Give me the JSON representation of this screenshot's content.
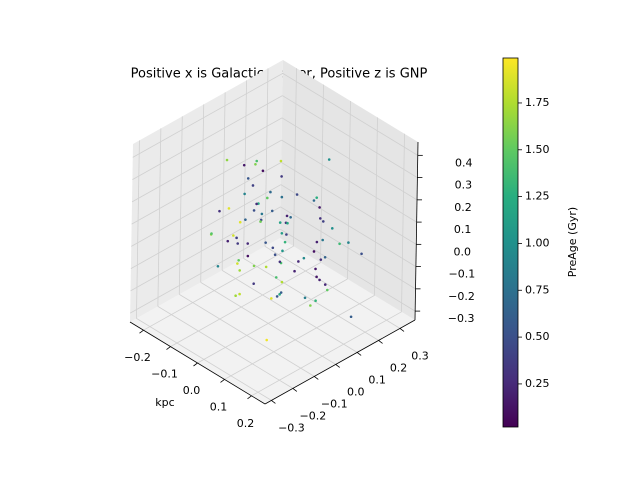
{
  "chart_data": {
    "type": "scatter3d",
    "title": "Positive x is Galactic Center, Positive z is GNP",
    "x_label": "kpc",
    "colorbar_label": "PreAge (Gyr)",
    "cmap": "viridis",
    "grid": true,
    "xlim": [
      -0.25,
      0.25
    ],
    "ylim": [
      -0.33,
      0.37
    ],
    "zlim": [
      -0.34,
      0.46
    ],
    "clim": [
      0.02,
      1.99
    ],
    "xticks": [
      {
        "value": -0.2,
        "label": "−0.2"
      },
      {
        "value": -0.1,
        "label": "−0.1"
      },
      {
        "value": 0,
        "label": "0.0"
      },
      0.1,
      0.2
    ],
    "yticks": [
      {
        "value": -0.3,
        "label": "−0.3"
      },
      {
        "value": -0.2,
        "label": "−0.2"
      },
      {
        "value": -0.1,
        "label": "−0.1"
      },
      {
        "value": 0,
        "label": "0.0"
      },
      0.1,
      0.2,
      0.3
    ],
    "zticks": [
      {
        "value": -0.3,
        "label": "−0.3"
      },
      {
        "value": -0.2,
        "label": "−0.2"
      },
      {
        "value": -0.1,
        "label": "−0.1"
      },
      {
        "value": 0,
        "label": "0.0"
      },
      0.1,
      0.2,
      0.3,
      0.4
    ],
    "cticks": [
      0.25,
      {
        "value": 0.5,
        "label": "0.50"
      },
      0.75,
      {
        "value": 1,
        "label": "1.00"
      },
      1.25,
      {
        "value": 1.5,
        "label": "1.50"
      },
      1.75
    ],
    "x": [
      0.02,
      -0.05,
      0.08,
      -0.11,
      0.01,
      0.04,
      -0.02,
      0.12,
      -0.07,
      0.03,
      -0.01,
      0.06,
      -0.09,
      0.15,
      -0.03,
      0.0,
      0.09,
      -0.13,
      0.05,
      -0.04,
      0.11,
      -0.06,
      0.02,
      -0.18,
      0.07,
      -0.02,
      0.14,
      -0.08,
      0.01,
      0.19,
      -0.15,
      0.04,
      -0.01,
      0.08,
      -0.05,
      0.1,
      -0.12,
      0.03,
      0.17,
      -0.2,
      0.06,
      -0.03,
      0.13,
      -0.09,
      0.0,
      0.05,
      -0.14,
      0.09,
      -0.04,
      0.21,
      0.02,
      -0.07,
      0.11,
      -0.02,
      0.07,
      -0.16,
      0.04,
      -0.1,
      0.15,
      -0.01,
      0.08,
      -0.05,
      0.03,
      -0.12,
      0.1,
      -0.08,
      0.06,
      0.0,
      -0.19,
      0.12,
      -0.03,
      0.14,
      -0.06,
      0.02,
      0.18,
      -0.11,
      0.05,
      -0.02,
      0.09,
      -0.17,
      0.01,
      -0.04,
      0.07,
      -0.09,
      0.03,
      0.12,
      -0.07,
      0.16,
      -0.13,
      0.04
    ],
    "y": [
      0.05,
      -0.08,
      0.12,
      0.02,
      -0.15,
      0.2,
      -0.03,
      0.07,
      0.1,
      -0.11,
      0.15,
      -0.02,
      0.04,
      -0.18,
      0.09,
      0.25,
      -0.06,
      0.13,
      -0.22,
      0.01,
      0.08,
      -0.12,
      0.18,
      0.06,
      -0.04,
      0.3,
      -0.14,
      0.03,
      0.22,
      -0.25,
      0.11,
      0.0,
      -0.09,
      0.16,
      0.05,
      -0.2,
      0.14,
      -0.28,
      0.02,
      0.19,
      -0.05,
      0.1,
      0.07,
      -0.16,
      0.21,
      -0.01,
      0.04,
      -0.1,
      0.27,
      0.12,
      -0.07,
      0.17,
      0.03,
      -0.13,
      0.24,
      0.08,
      -0.19,
      0.11,
      -0.03,
      0.06,
      0.14,
      -0.21,
      0.02,
      0.09,
      -0.08,
      0.2,
      0.12,
      -0.15,
      0.05,
      0.28,
      0.0,
      -0.06,
      0.15,
      0.1,
      -0.17,
      0.04,
      0.23,
      -0.09,
      0.16,
      -0.02,
      0.07,
      0.13,
      -0.24,
      0.01,
      0.18,
      -0.12,
      0.09,
      0.06,
      -0.04,
      0.32
    ],
    "z": [
      0.1,
      -0.05,
      0.02,
      0.15,
      -0.12,
      0.04,
      0.2,
      -0.08,
      0.06,
      0.0,
      -0.15,
      0.12,
      0.08,
      -0.02,
      0.25,
      -0.1,
      0.03,
      0.18,
      -0.06,
      0.09,
      -0.2,
      0.05,
      0.13,
      -0.11,
      0.01,
      0.22,
      -0.04,
      0.3,
      0.07,
      -0.14,
      0.11,
      -0.18,
      0.06,
      -0.07,
      0.16,
      0.02,
      -0.25,
      0.09,
      -0.03,
      0.14,
      0.04,
      -0.09,
      0.19,
      0.08,
      -0.13,
      0.27,
      -0.01,
      0.12,
      0.05,
      -0.22,
      0.17,
      0.0,
      -0.16,
      0.1,
      -0.06,
      0.21,
      0.03,
      -0.11,
      0.08,
      0.35,
      -0.07,
      0.14,
      -0.19,
      0.06,
      0.23,
      -0.03,
      -0.28,
      0.1,
      0.01,
      -0.09,
      0.13,
      0.03,
      -0.1,
      0.2,
      0.07,
      -0.14,
      0.0,
      0.16,
      -0.21,
      0.05,
      0.08,
      -0.04,
      0.11,
      0.24,
      -0.17,
      0.02,
      0.15,
      -0.08,
      0.32,
      -0.12
    ],
    "c": [
      0.3,
      1.5,
      0.2,
      0.9,
      1.8,
      0.4,
      1.2,
      0.15,
      0.6,
      1.6,
      0.25,
      1.1,
      0.5,
      1.9,
      0.35,
      0.8,
      1.4,
      0.1,
      1.7,
      0.45,
      1.3,
      0.2,
      0.7,
      1.85,
      0.3,
      1.0,
      0.55,
      1.6,
      0.15,
      1.95,
      0.4,
      1.2,
      0.25,
      0.65,
      1.5,
      0.35,
      1.75,
      0.9,
      0.2,
      1.4,
      0.5,
      1.05,
      0.3,
      1.65,
      0.1,
      0.75,
      1.9,
      0.45,
      1.25,
      0.6,
      1.55,
      0.2,
      0.85,
      0.4,
      1.35,
      0.15,
      1.7,
      0.55,
      0.95,
      1.8,
      0.3,
      1.45,
      0.6,
      0.25,
      1.15,
      0.7,
      1.6,
      0.35,
      1.9,
      0.5,
      0.8,
      0.2,
      1.3,
      0.45,
      1.75,
      0.1,
      1.0,
      0.65,
      1.5,
      0.3,
      1.2,
      0.4,
      1.85,
      0.55,
      0.15,
      1.4,
      0.7,
      0.25,
      1.65,
      0.9
    ]
  }
}
